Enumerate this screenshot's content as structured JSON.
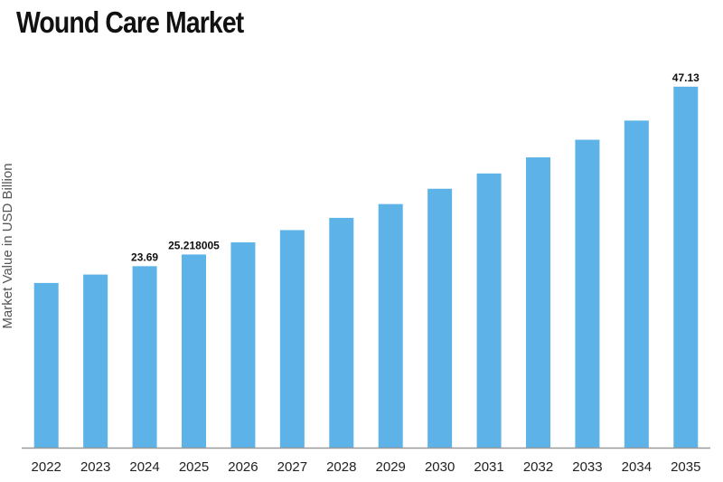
{
  "chart_data": {
    "type": "bar",
    "title": "Wound Care Market",
    "xlabel": "",
    "ylabel": "Market Value in USD Billion",
    "categories": [
      "2022",
      "2023",
      "2024",
      "2025",
      "2026",
      "2027",
      "2028",
      "2029",
      "2030",
      "2031",
      "2032",
      "2033",
      "2034",
      "2035"
    ],
    "values": [
      21.5,
      22.6,
      23.69,
      25.218005,
      26.8,
      28.4,
      30.0,
      31.8,
      33.8,
      35.8,
      37.9,
      40.2,
      42.7,
      47.13
    ],
    "data_labels": [
      {
        "category": "2024",
        "text": "23.69"
      },
      {
        "category": "2025",
        "text": "25.218005"
      },
      {
        "category": "2035",
        "text": "47.13"
      }
    ],
    "ylim": [
      0,
      49
    ],
    "grid": false,
    "legend": "none",
    "bar_color": "#5db3e8",
    "axis_color": "#9a9a9a"
  }
}
